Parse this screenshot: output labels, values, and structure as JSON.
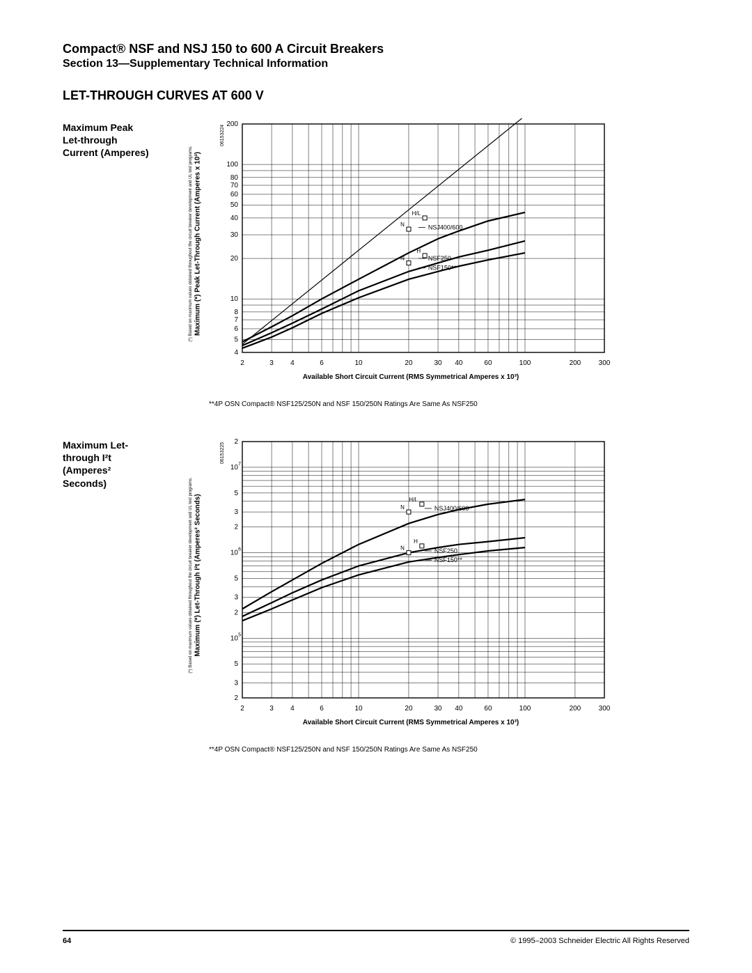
{
  "header": {
    "title": "Compact® NSF and NSJ 150 to 600 A Circuit Breakers",
    "subtitle": "Section 13—Supplementary Technical Information"
  },
  "section_title": "LET-THROUGH CURVES AT 600 V",
  "chart1": {
    "type": "line-loglog",
    "side_label_lines": [
      "Maximum Peak",
      "Let-through",
      "Current (Amperes)"
    ],
    "doc_id": "06153224",
    "y_axis_label": "Maximum (*) Peak Let-Through Current (Amperes x 10³)",
    "y_axis_small": "(*) Based on maximum values obtained throughout the circuit breaker development and UL test programs.",
    "x_axis_label": "Available Short Circuit Current (RMS Symmetrical Amperes x 10³)",
    "x_ticks": [
      "2",
      "3",
      "4",
      "6",
      "10",
      "20",
      "30",
      "40",
      "60",
      "100",
      "200",
      "300"
    ],
    "y_ticks": [
      "4",
      "5",
      "6",
      "7",
      "8",
      "10",
      "20",
      "30",
      "40",
      "50",
      "60",
      "70",
      "80",
      "100",
      "200"
    ],
    "xlim": [
      2,
      300
    ],
    "ylim": [
      4,
      200
    ],
    "background_color": "#ffffff",
    "grid_color": "#000000",
    "grid_stroke_width": 0.5,
    "line_color": "#000000",
    "line_width": 2.2,
    "axis_stroke_width": 1.4,
    "font_size_ticks": 10,
    "font_size_labels": 9,
    "series": [
      {
        "name": "diagonal",
        "points": [
          [
            2,
            4.6
          ],
          [
            300,
            690
          ]
        ],
        "style": "straight"
      },
      {
        "name": "NSJ400/600",
        "label_at": [
          22,
          34
        ],
        "markers": {
          "N": [
            20,
            33
          ],
          "H/L": [
            25,
            40
          ]
        },
        "points": [
          [
            2,
            4.8
          ],
          [
            3,
            6.2
          ],
          [
            4,
            7.5
          ],
          [
            6,
            10
          ],
          [
            10,
            14
          ],
          [
            20,
            22
          ],
          [
            30,
            28
          ],
          [
            40,
            32
          ],
          [
            60,
            38
          ],
          [
            100,
            44
          ]
        ]
      },
      {
        "name": "NSF250",
        "label_at": [
          22,
          20
        ],
        "markers": {
          "N": [
            20,
            18.5
          ],
          "H": [
            25,
            21
          ]
        },
        "points": [
          [
            2,
            4.5
          ],
          [
            3,
            5.6
          ],
          [
            4,
            6.6
          ],
          [
            6,
            8.4
          ],
          [
            10,
            11.5
          ],
          [
            20,
            16
          ],
          [
            30,
            18.5
          ],
          [
            40,
            20.5
          ],
          [
            60,
            23
          ],
          [
            100,
            27
          ]
        ]
      },
      {
        "name": "NSF150**",
        "label_at": [
          22,
          17
        ],
        "markers": {},
        "points": [
          [
            2,
            4.3
          ],
          [
            3,
            5.2
          ],
          [
            4,
            6.1
          ],
          [
            6,
            7.8
          ],
          [
            10,
            10.2
          ],
          [
            20,
            14
          ],
          [
            30,
            16
          ],
          [
            40,
            17.5
          ],
          [
            60,
            19.5
          ],
          [
            100,
            22
          ]
        ]
      }
    ],
    "footnote": "**4P OSN Compact® NSF125/250N and NSF 150/250N Ratings Are Same As NSF250"
  },
  "chart2": {
    "type": "line-loglog",
    "side_label_lines": [
      "Maximum Let-",
      "through I²t",
      "(Amperes²",
      "Seconds)"
    ],
    "doc_id": "06153225",
    "y_axis_label": "Maximum (*) Let-Through I²t (Amperes² Seconds)",
    "y_axis_small": "(*) Based on maximum values obtained throughout the circuit breaker development and UL test programs.",
    "x_axis_label": "Available Short Circuit Current (RMS Symmetrical Amperes x 10³)",
    "x_ticks": [
      "2",
      "3",
      "4",
      "6",
      "10",
      "20",
      "30",
      "40",
      "60",
      "100",
      "200",
      "300"
    ],
    "y_ticks_major": [
      "10^5",
      "10^6",
      "10^7"
    ],
    "y_ticks_minor": [
      "2",
      "3",
      "5",
      "2",
      "3",
      "5",
      "2",
      "3",
      "5",
      "2"
    ],
    "xlim": [
      2,
      300
    ],
    "ylim": [
      20000,
      20000000
    ],
    "background_color": "#ffffff",
    "grid_color": "#000000",
    "grid_stroke_width": 0.5,
    "line_color": "#000000",
    "line_width": 2.2,
    "axis_stroke_width": 1.4,
    "font_size_ticks": 10,
    "series": [
      {
        "name": "NSJ400/600",
        "label_at": [
          24,
          3300000
        ],
        "markers": {
          "N": [
            20,
            3000000
          ],
          "H/L": [
            24,
            3700000
          ]
        },
        "points": [
          [
            2,
            220000
          ],
          [
            3,
            350000
          ],
          [
            4,
            480000
          ],
          [
            6,
            750000
          ],
          [
            10,
            1250000
          ],
          [
            20,
            2200000
          ],
          [
            30,
            2800000
          ],
          [
            40,
            3200000
          ],
          [
            60,
            3700000
          ],
          [
            100,
            4200000
          ]
        ]
      },
      {
        "name": "NSF250",
        "label_at": [
          24,
          1050000
        ],
        "markers": {
          "N": [
            20,
            1000000
          ],
          "H": [
            24,
            1200000
          ]
        },
        "points": [
          [
            2,
            180000
          ],
          [
            3,
            260000
          ],
          [
            4,
            340000
          ],
          [
            6,
            480000
          ],
          [
            10,
            700000
          ],
          [
            20,
            1000000
          ],
          [
            30,
            1150000
          ],
          [
            40,
            1250000
          ],
          [
            60,
            1350000
          ],
          [
            100,
            1500000
          ]
        ]
      },
      {
        "name": "NSF150**",
        "label_at": [
          24,
          820000
        ],
        "markers": {},
        "points": [
          [
            2,
            160000
          ],
          [
            3,
            220000
          ],
          [
            4,
            280000
          ],
          [
            6,
            390000
          ],
          [
            10,
            550000
          ],
          [
            20,
            780000
          ],
          [
            30,
            880000
          ],
          [
            40,
            950000
          ],
          [
            60,
            1050000
          ],
          [
            100,
            1150000
          ]
        ]
      }
    ],
    "footnote": "**4P OSN Compact® NSF125/250N and NSF 150/250N Ratings Are Same As NSF250"
  },
  "footer": {
    "page": "64",
    "copyright": "© 1995–2003 Schneider Electric All Rights Reserved"
  }
}
